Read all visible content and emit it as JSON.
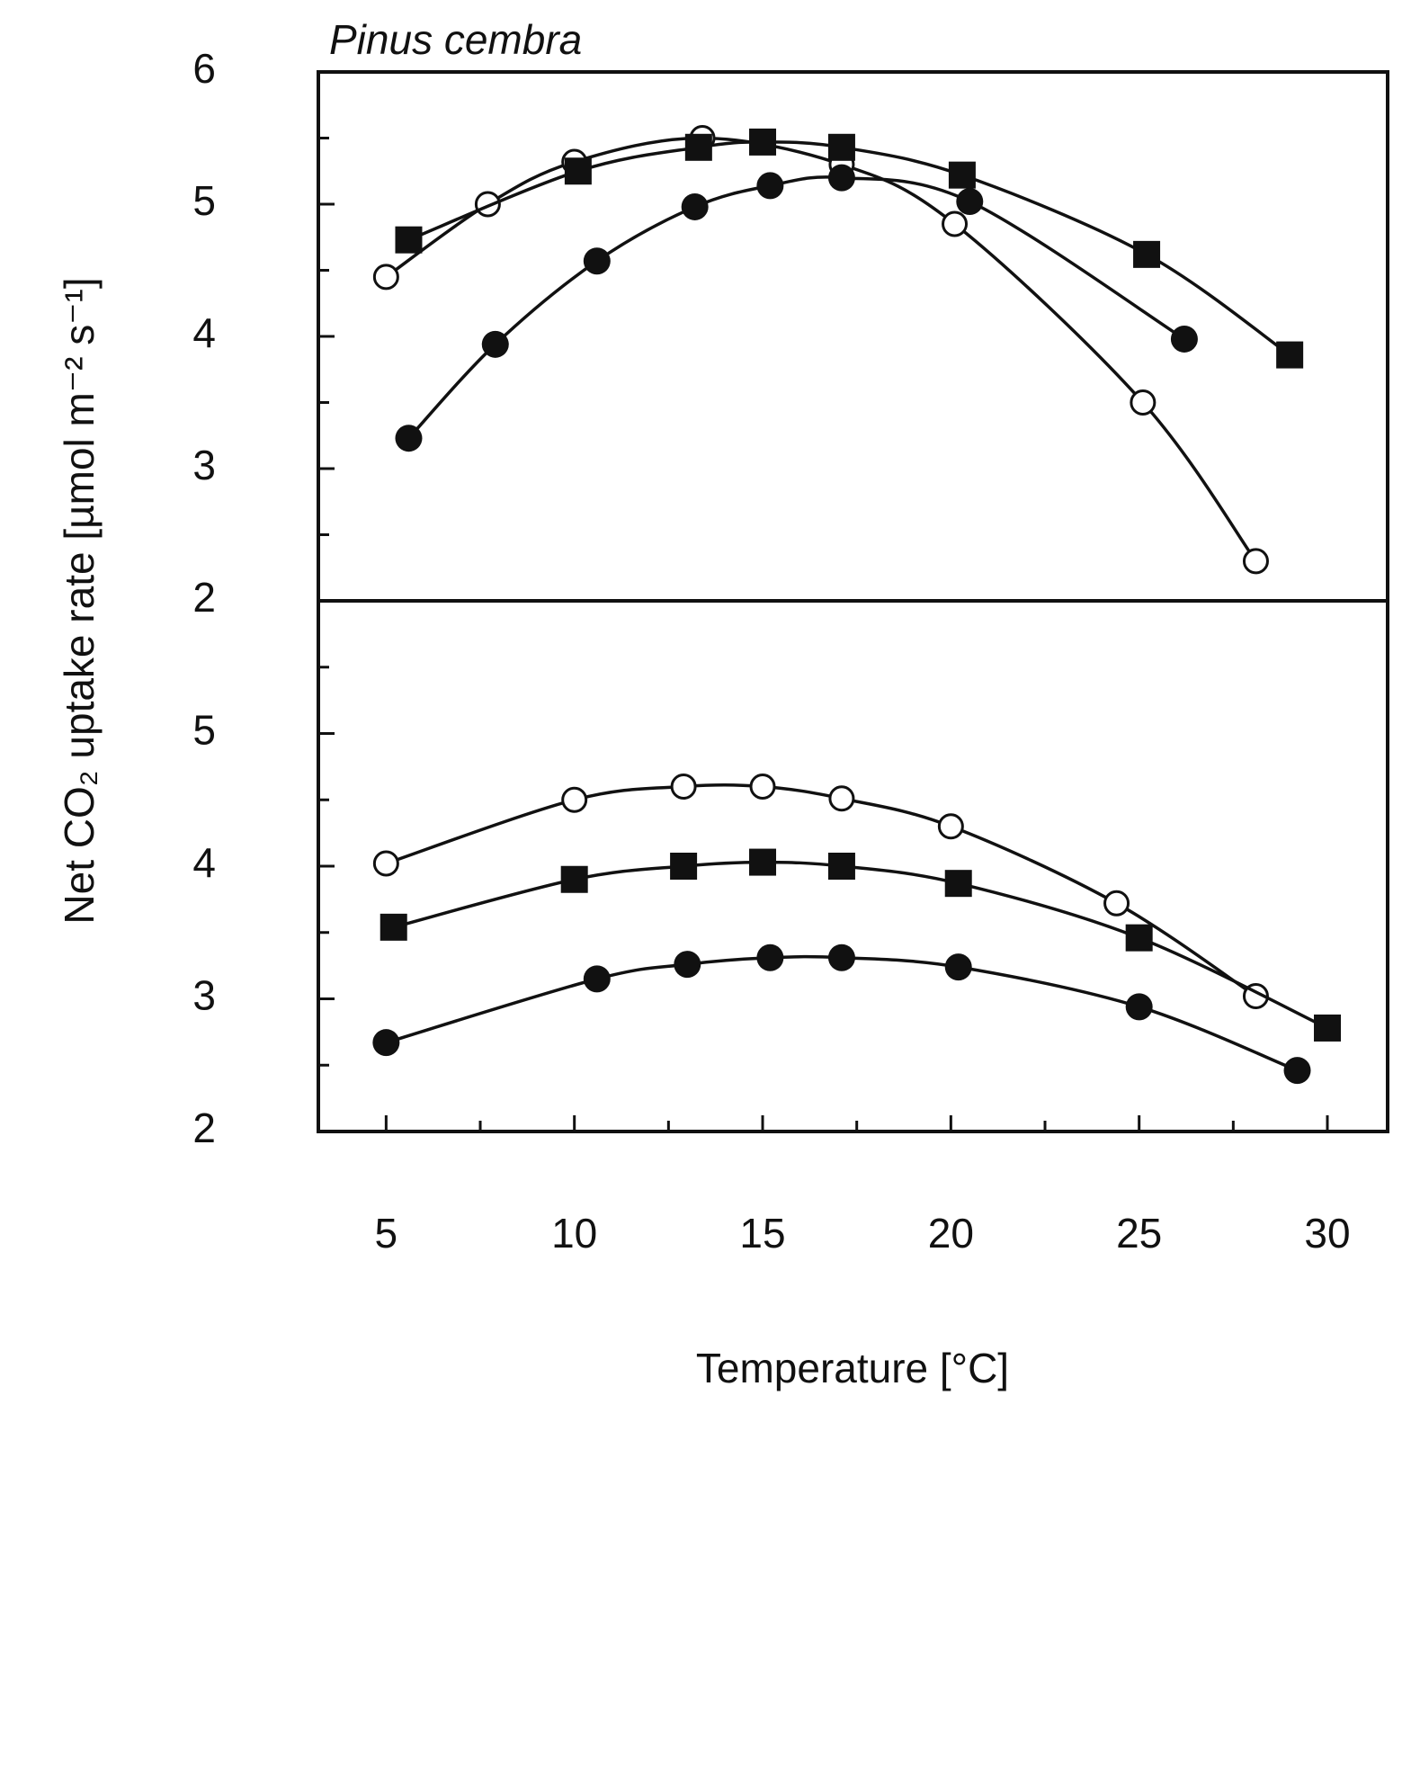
{
  "chart_data": [
    {
      "type": "scatter",
      "title": "Pinus cembra",
      "ylabel": "Net CO₂ uptake rate [µmol m⁻² s⁻¹]",
      "xlim": [
        3.2,
        31.6
      ],
      "ylim": [
        2,
        6
      ],
      "yticks": [
        2,
        3,
        4,
        5,
        6
      ],
      "yminor": [
        2.5,
        3.5,
        4.5,
        5.5
      ],
      "series": [
        {
          "marker": "circle-open",
          "color": "#111111",
          "x": [
            5,
            7.7,
            10,
            13.4,
            17.1,
            20.1,
            25.1,
            28.1
          ],
          "values": [
            4.45,
            5.0,
            5.32,
            5.5,
            5.3,
            4.85,
            3.5,
            2.3
          ]
        },
        {
          "marker": "square",
          "color": "#111111",
          "x": [
            5.6,
            10.1,
            13.3,
            15,
            17.1,
            20.3,
            25.2,
            29
          ],
          "values": [
            4.73,
            5.25,
            5.43,
            5.47,
            5.43,
            5.22,
            4.62,
            3.86
          ]
        },
        {
          "marker": "circle",
          "color": "#111111",
          "x": [
            5.6,
            7.9,
            10.6,
            13.2,
            15.2,
            17.1,
            20.5,
            26.2
          ],
          "values": [
            3.23,
            3.94,
            4.57,
            4.98,
            5.14,
            5.2,
            5.02,
            3.98
          ]
        }
      ]
    },
    {
      "type": "scatter",
      "xlabel": "Temperature [°C]",
      "xlim": [
        3.2,
        31.6
      ],
      "ylim": [
        2,
        6
      ],
      "yticks": [
        2,
        3,
        4,
        5
      ],
      "yminor": [
        2.5,
        3.5,
        4.5,
        5.5
      ],
      "xticks": [
        5,
        10,
        15,
        20,
        25,
        30
      ],
      "xminor": [
        7.5,
        12.5,
        17.5,
        22.5,
        27.5
      ],
      "series": [
        {
          "marker": "circle-open",
          "color": "#111111",
          "x": [
            5,
            10,
            12.9,
            15,
            17.1,
            20,
            24.4,
            28.1
          ],
          "values": [
            4.02,
            4.5,
            4.6,
            4.6,
            4.51,
            4.3,
            3.72,
            3.02
          ]
        },
        {
          "marker": "square",
          "color": "#111111",
          "x": [
            5.2,
            10,
            12.9,
            15,
            17.1,
            20.2,
            25,
            30
          ],
          "values": [
            3.54,
            3.9,
            4.0,
            4.03,
            4.0,
            3.87,
            3.46,
            2.78
          ]
        },
        {
          "marker": "circle",
          "color": "#111111",
          "x": [
            5,
            10.6,
            13,
            15.2,
            17.1,
            20.2,
            25,
            29.2
          ],
          "values": [
            2.67,
            3.15,
            3.26,
            3.31,
            3.31,
            3.24,
            2.94,
            2.46
          ]
        }
      ]
    }
  ]
}
